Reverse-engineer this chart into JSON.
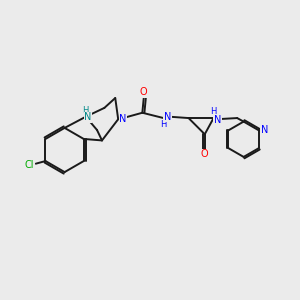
{
  "bg_color": "#ebebeb",
  "bond_color": "#1a1a1a",
  "N_color": "#0000ff",
  "O_color": "#ff0000",
  "Cl_color": "#00aa00",
  "NH_color": "#008888",
  "figsize": [
    3.0,
    3.0
  ],
  "dpi": 100,
  "xlim": [
    0,
    10
  ],
  "ylim": [
    0,
    10
  ]
}
